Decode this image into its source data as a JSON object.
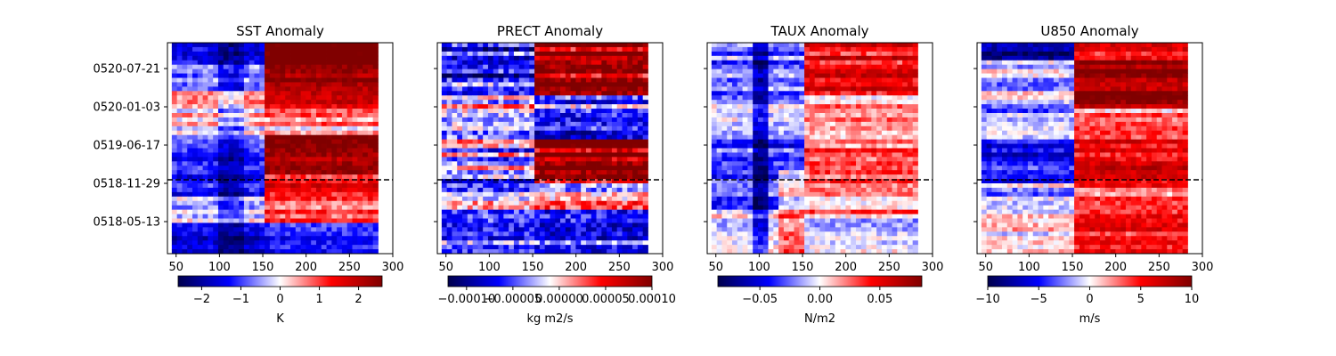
{
  "chart_data": [
    {
      "type": "heatmap",
      "title": "SST Anomaly",
      "x_range": [
        40,
        300
      ],
      "x_ticks": [
        50,
        100,
        150,
        200,
        250,
        300
      ],
      "y_tick_labels": [
        "0520-07-21",
        "0520-01-03",
        "0519-06-17",
        "0518-11-29",
        "0518-05-13"
      ],
      "show_y_tick_labels": true,
      "dashed_line_at": "0518-11-29",
      "colorbar": {
        "label": "K",
        "range": [
          -2.6,
          2.6
        ],
        "ticks": [
          -2,
          -1,
          0,
          1,
          2
        ],
        "tick_labels": [
          "−2",
          "−1",
          "0",
          "1",
          "2"
        ]
      },
      "rows": 48,
      "data_x_range": [
        45,
        283
      ],
      "pattern": "sst"
    },
    {
      "type": "heatmap",
      "title": "PRECT Anomaly",
      "x_range": [
        40,
        300
      ],
      "x_ticks": [
        50,
        100,
        150,
        200,
        250,
        300
      ],
      "y_tick_labels": [
        "0520-07-21",
        "0520-01-03",
        "0519-06-17",
        "0518-11-29",
        "0518-05-13"
      ],
      "show_y_tick_labels": false,
      "dashed_line_at": "0518-11-29",
      "colorbar": {
        "label": "kg m2/s",
        "range": [
          -0.00012,
          0.0001
        ],
        "ticks": [
          -0.0001,
          -5e-05,
          0.0,
          5e-05,
          0.0001
        ],
        "tick_labels": [
          "−0.00010",
          "−0.00005",
          "0.00000",
          "0.00005",
          "0.00010"
        ]
      },
      "rows": 48,
      "data_x_range": [
        45,
        283
      ],
      "pattern": "prect"
    },
    {
      "type": "heatmap",
      "title": "TAUX Anomaly",
      "x_range": [
        40,
        300
      ],
      "x_ticks": [
        50,
        100,
        150,
        200,
        250,
        300
      ],
      "y_tick_labels": [
        "0520-07-21",
        "0520-01-03",
        "0519-06-17",
        "0518-11-29",
        "0518-05-13"
      ],
      "show_y_tick_labels": false,
      "dashed_line_at": "0518-11-29",
      "colorbar": {
        "label": "N/m2",
        "range": [
          -0.085,
          0.085
        ],
        "ticks": [
          -0.05,
          0.0,
          0.05
        ],
        "tick_labels": [
          "−0.05",
          "0.00",
          "0.05"
        ]
      },
      "rows": 48,
      "data_x_range": [
        45,
        283
      ],
      "pattern": "taux"
    },
    {
      "type": "heatmap",
      "title": "U850 Anomaly",
      "x_range": [
        40,
        300
      ],
      "x_ticks": [
        50,
        100,
        150,
        200,
        250,
        300
      ],
      "y_tick_labels": [
        "0520-07-21",
        "0520-01-03",
        "0519-06-17",
        "0518-11-29",
        "0518-05-13"
      ],
      "show_y_tick_labels": false,
      "dashed_line_at": "0518-11-29",
      "colorbar": {
        "label": "m/s",
        "range": [
          -10,
          10
        ],
        "ticks": [
          -10,
          -5,
          0,
          5,
          10
        ],
        "tick_labels": [
          "−10",
          "−5",
          "0",
          "5",
          "10"
        ]
      },
      "rows": 48,
      "data_x_range": [
        45,
        283
      ],
      "pattern": "u850"
    }
  ]
}
